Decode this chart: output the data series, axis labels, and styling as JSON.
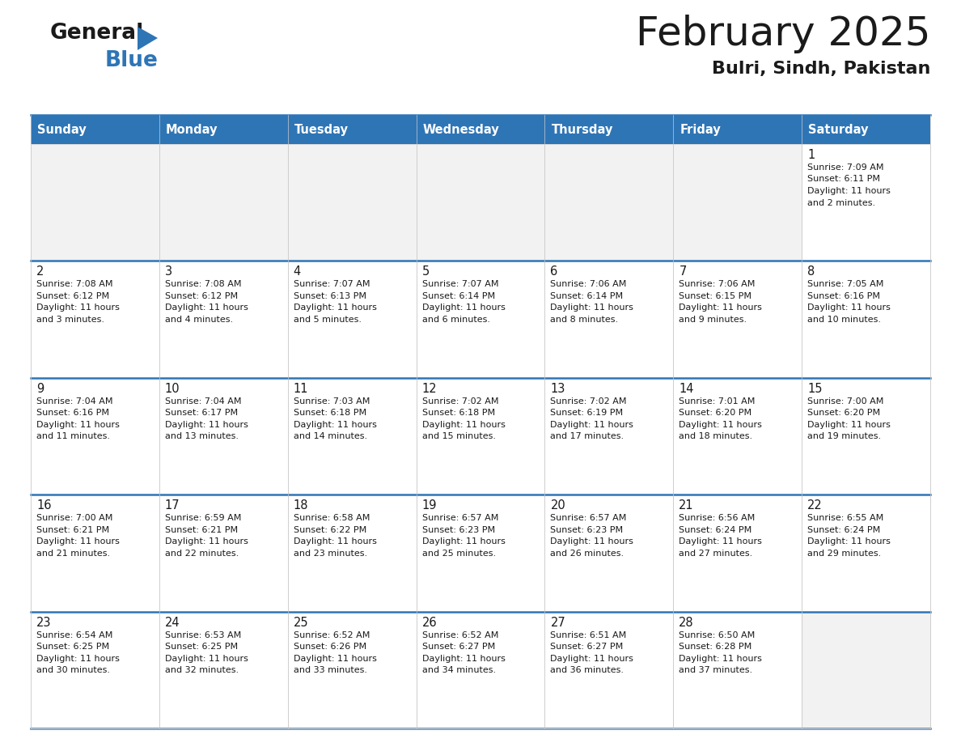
{
  "title": "February 2025",
  "subtitle": "Bulri, Sindh, Pakistan",
  "header_color": "#2E75B6",
  "header_text_color": "#FFFFFF",
  "cell_bg_white": "#FFFFFF",
  "cell_bg_gray": "#F2F2F2",
  "border_color": "#2E75B6",
  "text_color": "#1a1a1a",
  "day_headers": [
    "Sunday",
    "Monday",
    "Tuesday",
    "Wednesday",
    "Thursday",
    "Friday",
    "Saturday"
  ],
  "calendar_data": [
    [
      null,
      null,
      null,
      null,
      null,
      null,
      {
        "day": "1",
        "sunrise": "7:09 AM",
        "sunset": "6:11 PM",
        "daylight1": "Daylight: 11 hours",
        "daylight2": "and 2 minutes."
      }
    ],
    [
      {
        "day": "2",
        "sunrise": "7:08 AM",
        "sunset": "6:12 PM",
        "daylight1": "Daylight: 11 hours",
        "daylight2": "and 3 minutes."
      },
      {
        "day": "3",
        "sunrise": "7:08 AM",
        "sunset": "6:12 PM",
        "daylight1": "Daylight: 11 hours",
        "daylight2": "and 4 minutes."
      },
      {
        "day": "4",
        "sunrise": "7:07 AM",
        "sunset": "6:13 PM",
        "daylight1": "Daylight: 11 hours",
        "daylight2": "and 5 minutes."
      },
      {
        "day": "5",
        "sunrise": "7:07 AM",
        "sunset": "6:14 PM",
        "daylight1": "Daylight: 11 hours",
        "daylight2": "and 6 minutes."
      },
      {
        "day": "6",
        "sunrise": "7:06 AM",
        "sunset": "6:14 PM",
        "daylight1": "Daylight: 11 hours",
        "daylight2": "and 8 minutes."
      },
      {
        "day": "7",
        "sunrise": "7:06 AM",
        "sunset": "6:15 PM",
        "daylight1": "Daylight: 11 hours",
        "daylight2": "and 9 minutes."
      },
      {
        "day": "8",
        "sunrise": "7:05 AM",
        "sunset": "6:16 PM",
        "daylight1": "Daylight: 11 hours",
        "daylight2": "and 10 minutes."
      }
    ],
    [
      {
        "day": "9",
        "sunrise": "7:04 AM",
        "sunset": "6:16 PM",
        "daylight1": "Daylight: 11 hours",
        "daylight2": "and 11 minutes."
      },
      {
        "day": "10",
        "sunrise": "7:04 AM",
        "sunset": "6:17 PM",
        "daylight1": "Daylight: 11 hours",
        "daylight2": "and 13 minutes."
      },
      {
        "day": "11",
        "sunrise": "7:03 AM",
        "sunset": "6:18 PM",
        "daylight1": "Daylight: 11 hours",
        "daylight2": "and 14 minutes."
      },
      {
        "day": "12",
        "sunrise": "7:02 AM",
        "sunset": "6:18 PM",
        "daylight1": "Daylight: 11 hours",
        "daylight2": "and 15 minutes."
      },
      {
        "day": "13",
        "sunrise": "7:02 AM",
        "sunset": "6:19 PM",
        "daylight1": "Daylight: 11 hours",
        "daylight2": "and 17 minutes."
      },
      {
        "day": "14",
        "sunrise": "7:01 AM",
        "sunset": "6:20 PM",
        "daylight1": "Daylight: 11 hours",
        "daylight2": "and 18 minutes."
      },
      {
        "day": "15",
        "sunrise": "7:00 AM",
        "sunset": "6:20 PM",
        "daylight1": "Daylight: 11 hours",
        "daylight2": "and 19 minutes."
      }
    ],
    [
      {
        "day": "16",
        "sunrise": "7:00 AM",
        "sunset": "6:21 PM",
        "daylight1": "Daylight: 11 hours",
        "daylight2": "and 21 minutes."
      },
      {
        "day": "17",
        "sunrise": "6:59 AM",
        "sunset": "6:21 PM",
        "daylight1": "Daylight: 11 hours",
        "daylight2": "and 22 minutes."
      },
      {
        "day": "18",
        "sunrise": "6:58 AM",
        "sunset": "6:22 PM",
        "daylight1": "Daylight: 11 hours",
        "daylight2": "and 23 minutes."
      },
      {
        "day": "19",
        "sunrise": "6:57 AM",
        "sunset": "6:23 PM",
        "daylight1": "Daylight: 11 hours",
        "daylight2": "and 25 minutes."
      },
      {
        "day": "20",
        "sunrise": "6:57 AM",
        "sunset": "6:23 PM",
        "daylight1": "Daylight: 11 hours",
        "daylight2": "and 26 minutes."
      },
      {
        "day": "21",
        "sunrise": "6:56 AM",
        "sunset": "6:24 PM",
        "daylight1": "Daylight: 11 hours",
        "daylight2": "and 27 minutes."
      },
      {
        "day": "22",
        "sunrise": "6:55 AM",
        "sunset": "6:24 PM",
        "daylight1": "Daylight: 11 hours",
        "daylight2": "and 29 minutes."
      }
    ],
    [
      {
        "day": "23",
        "sunrise": "6:54 AM",
        "sunset": "6:25 PM",
        "daylight1": "Daylight: 11 hours",
        "daylight2": "and 30 minutes."
      },
      {
        "day": "24",
        "sunrise": "6:53 AM",
        "sunset": "6:25 PM",
        "daylight1": "Daylight: 11 hours",
        "daylight2": "and 32 minutes."
      },
      {
        "day": "25",
        "sunrise": "6:52 AM",
        "sunset": "6:26 PM",
        "daylight1": "Daylight: 11 hours",
        "daylight2": "and 33 minutes."
      },
      {
        "day": "26",
        "sunrise": "6:52 AM",
        "sunset": "6:27 PM",
        "daylight1": "Daylight: 11 hours",
        "daylight2": "and 34 minutes."
      },
      {
        "day": "27",
        "sunrise": "6:51 AM",
        "sunset": "6:27 PM",
        "daylight1": "Daylight: 11 hours",
        "daylight2": "and 36 minutes."
      },
      {
        "day": "28",
        "sunrise": "6:50 AM",
        "sunset": "6:28 PM",
        "daylight1": "Daylight: 11 hours",
        "daylight2": "and 37 minutes."
      },
      null
    ]
  ],
  "logo_general_color": "#1a1a1a",
  "logo_blue_color": "#2E75B6",
  "logo_triangle_color": "#2E75B6"
}
